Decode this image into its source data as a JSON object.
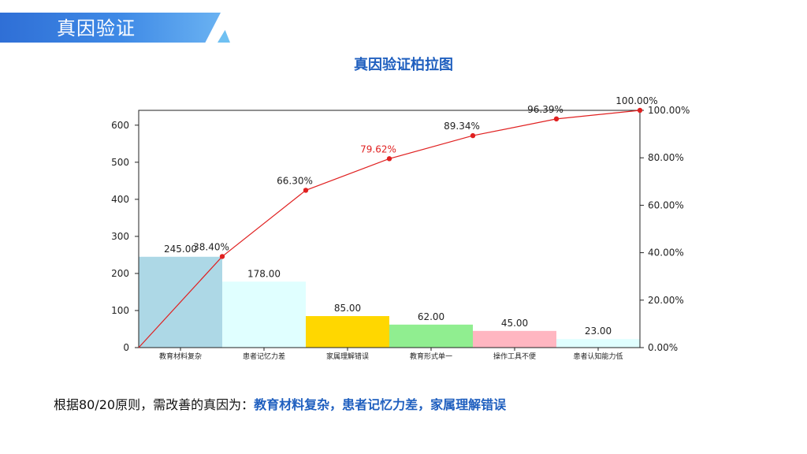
{
  "header": {
    "title": "真因验证"
  },
  "chart_title": "真因验证柏拉图",
  "conclusion": {
    "prefix": "根据80/20原则，需改善的真因为：",
    "highlight": "教育材料复杂，患者记忆力差，家属理解错误"
  },
  "chart_data": {
    "type": "bar",
    "title": "真因验证柏拉图",
    "categories": [
      "教育材料复杂",
      "患者记忆力差",
      "家属理解错误",
      "教育形式单一",
      "操作工具不便",
      "患者认知能力低"
    ],
    "values": [
      245,
      178,
      85,
      62,
      45,
      23
    ],
    "value_labels": [
      "245.00",
      "178.00",
      "85.00",
      "62.00",
      "45.00",
      "23.00"
    ],
    "bar_colors": [
      "#add8e6",
      "#e0ffff",
      "#ffd700",
      "#90ee90",
      "#ffb6c1",
      "#e0ffff"
    ],
    "cumulative_percent": [
      38.4,
      66.3,
      79.62,
      89.34,
      96.39,
      100.0
    ],
    "cumulative_labels": [
      "38.40%",
      "66.30%",
      "79.62%",
      "89.34%",
      "96.39%",
      "100.00%"
    ],
    "highlight_label_index": 2,
    "line_color": "#e02020",
    "highlight_color": "#e02020",
    "ylim": [
      0,
      640
    ],
    "y_ticks": [
      0,
      100,
      200,
      300,
      400,
      500,
      600
    ],
    "y2lim": [
      0,
      100
    ],
    "y2_ticks": [
      "0.00%",
      "20.00%",
      "40.00%",
      "60.00%",
      "80.00%",
      "100.00%"
    ],
    "grid": false
  }
}
